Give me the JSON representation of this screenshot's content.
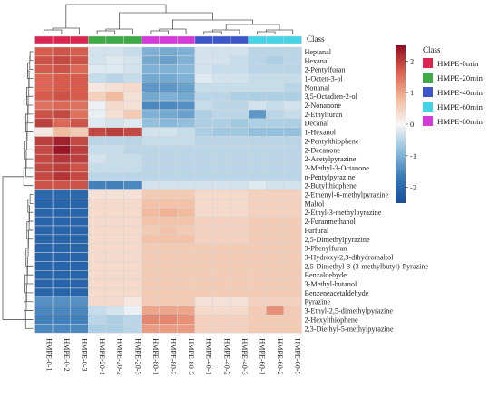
{
  "chart_data": {
    "type": "heatmap",
    "title": "",
    "class_row_label": "Class",
    "legend_title": "Class",
    "classes": [
      {
        "name": "HMPE-0min",
        "color": "#d9254f"
      },
      {
        "name": "HMPE-20min",
        "color": "#3daa47"
      },
      {
        "name": "HMPE-40min",
        "color": "#3c55c9"
      },
      {
        "name": "HMPE-60min",
        "color": "#45d3e6"
      },
      {
        "name": "HMPE-80min",
        "color": "#d43ad8"
      }
    ],
    "samples": [
      {
        "name": "HMPE-0-1",
        "class": "HMPE-0min"
      },
      {
        "name": "HMPE-0-2",
        "class": "HMPE-0min"
      },
      {
        "name": "HMPE-0-3",
        "class": "HMPE-0min"
      },
      {
        "name": "HMPE-20-1",
        "class": "HMPE-20min"
      },
      {
        "name": "HMPE-20-2",
        "class": "HMPE-20min"
      },
      {
        "name": "HMPE-20-3",
        "class": "HMPE-20min"
      },
      {
        "name": "HMPE-80-1",
        "class": "HMPE-80min"
      },
      {
        "name": "HMPE-80-2",
        "class": "HMPE-80min"
      },
      {
        "name": "HMPE-80-3",
        "class": "HMPE-80min"
      },
      {
        "name": "HMPE-40-1",
        "class": "HMPE-40min"
      },
      {
        "name": "HMPE-40-2",
        "class": "HMPE-40min"
      },
      {
        "name": "HMPE-40-3",
        "class": "HMPE-40min"
      },
      {
        "name": "HMPE-60-1",
        "class": "HMPE-60min"
      },
      {
        "name": "HMPE-60-2",
        "class": "HMPE-60min"
      },
      {
        "name": "HMPE-60-3",
        "class": "HMPE-60min"
      }
    ],
    "compounds": [
      "Heptanal",
      "Hexanal",
      "2-Pentylfuran",
      "1-Octen-3-ol",
      "Nonanal",
      "3,5-Octadien-2-ol",
      "2-Nonanone",
      "2-Ethylfuran",
      "Decanal",
      "1-Hexanol",
      "2-Pentylthiophene",
      "2-Decanone",
      "2-Acetylpyrazine",
      "2-Methyl-3-Octanone",
      "n-Pentylpyrazine",
      "2-Butylthiophene",
      "2-Ethenyl-6-methylpyrazine",
      "Maltol",
      "2-Ethyl-3-methylpyrazine",
      "2-Furanmethanol",
      "Furfural",
      "2,5-Dimethylpyrazine",
      "3-Phenylfuran",
      "3-Hydroxy-2,3-dihydromaltol",
      "2,5-Dimethyl-3-(3-methylbutyl)-Pyrazine",
      "Benzaldehyde",
      "3-Methyl-butanol",
      "Benzeneacetaldehyde",
      "Pyrazine",
      "3-Ethyl-2,5-dimethylpyrazine",
      "2-Hexylthiophene",
      "2,3-Diethyl-5-methylpyrazine"
    ],
    "values": [
      [
        1.7,
        1.8,
        1.7,
        -0.3,
        -0.3,
        -0.4,
        -1.0,
        -1.1,
        -1.0,
        -0.3,
        -0.3,
        -0.3,
        -0.5,
        -0.5,
        -0.5
      ],
      [
        1.8,
        1.9,
        1.8,
        -0.3,
        -0.2,
        -0.3,
        -1.1,
        -1.2,
        -1.0,
        -0.3,
        -0.3,
        -0.4,
        -0.5,
        -0.6,
        -0.5
      ],
      [
        1.7,
        1.8,
        1.6,
        -0.2,
        -0.2,
        -0.3,
        -1.0,
        -1.0,
        -0.9,
        -0.3,
        -0.4,
        -0.4,
        -0.5,
        -0.5,
        -0.5
      ],
      [
        1.6,
        1.7,
        1.7,
        -0.4,
        -0.5,
        -0.4,
        -1.1,
        -1.1,
        -1.0,
        -0.2,
        -0.3,
        -0.3,
        -0.4,
        -0.4,
        -0.4
      ],
      [
        1.6,
        1.7,
        1.7,
        0.2,
        0.3,
        0.4,
        -1.3,
        -1.3,
        -1.2,
        -0.4,
        -0.4,
        -0.4,
        -0.4,
        -0.4,
        -0.5
      ],
      [
        1.7,
        1.8,
        1.7,
        0.5,
        0.8,
        0.3,
        -1.1,
        -1.0,
        -1.1,
        -0.5,
        -0.5,
        -0.6,
        -0.6,
        -0.6,
        -0.6
      ],
      [
        1.5,
        1.6,
        1.5,
        -0.1,
        0.4,
        0.3,
        -1.5,
        -1.5,
        -1.4,
        -0.4,
        -0.5,
        -0.5,
        -0.3,
        -0.4,
        -0.3
      ],
      [
        1.8,
        1.9,
        1.5,
        -0.1,
        0.3,
        0.6,
        -1.0,
        -1.1,
        -1.2,
        -0.6,
        -0.5,
        -0.5,
        -1.3,
        -0.5,
        -0.4
      ],
      [
        2.0,
        1.6,
        1.8,
        -0.2,
        -0.3,
        -0.2,
        -0.8,
        -0.9,
        -0.8,
        -0.6,
        -0.6,
        -0.7,
        -0.6,
        -0.6,
        -0.6
      ],
      [
        0.2,
        0.8,
        0.6,
        1.9,
        2.0,
        1.9,
        -0.3,
        -0.3,
        -0.4,
        -0.6,
        -0.7,
        -0.7,
        -0.8,
        -0.8,
        -0.8
      ],
      [
        2.0,
        2.3,
        1.9,
        -0.5,
        -0.5,
        -0.5,
        -0.4,
        -0.4,
        -0.4,
        -0.5,
        -0.5,
        -0.5,
        -0.5,
        -0.5,
        -0.5
      ],
      [
        1.9,
        2.4,
        2.0,
        -0.4,
        -0.4,
        -0.5,
        -0.5,
        -0.5,
        -0.5,
        -0.5,
        -0.5,
        -0.5,
        -0.5,
        -0.5,
        -0.5
      ],
      [
        1.9,
        2.1,
        2.0,
        -0.3,
        -0.4,
        -0.4,
        -0.5,
        -0.5,
        -0.5,
        -0.5,
        -0.5,
        -0.5,
        -0.5,
        -0.5,
        -0.5
      ],
      [
        1.9,
        2.0,
        1.8,
        -0.4,
        -0.4,
        -0.4,
        -0.5,
        -0.5,
        -0.5,
        -0.5,
        -0.5,
        -0.5,
        -0.5,
        -0.5,
        -0.5
      ],
      [
        1.9,
        2.1,
        1.9,
        -0.5,
        -0.5,
        -0.5,
        -0.5,
        -0.5,
        -0.5,
        -0.5,
        -0.5,
        -0.5,
        -0.5,
        -0.5,
        -0.5
      ],
      [
        1.8,
        1.8,
        1.8,
        -1.6,
        -1.6,
        -1.5,
        -0.3,
        -0.3,
        -0.3,
        -0.3,
        -0.3,
        -0.3,
        -0.2,
        -0.3,
        -0.3
      ],
      [
        -2.0,
        -2.0,
        -2.0,
        0.3,
        0.3,
        0.3,
        0.6,
        0.6,
        0.6,
        0.4,
        0.4,
        0.4,
        0.5,
        0.5,
        0.5
      ],
      [
        -2.1,
        -2.1,
        -2.1,
        0.4,
        0.4,
        0.4,
        0.7,
        0.7,
        0.7,
        0.4,
        0.4,
        0.4,
        0.5,
        0.5,
        0.5
      ],
      [
        -2.1,
        -2.1,
        -2.1,
        0.4,
        0.4,
        0.4,
        0.8,
        0.9,
        0.8,
        0.4,
        0.4,
        0.4,
        0.5,
        0.5,
        0.5
      ],
      [
        -2.1,
        -2.1,
        -2.1,
        0.4,
        0.4,
        0.4,
        0.7,
        0.7,
        0.7,
        0.5,
        0.5,
        0.5,
        0.6,
        0.6,
        0.6
      ],
      [
        -2.1,
        -2.1,
        -2.1,
        0.4,
        0.4,
        0.4,
        0.6,
        0.7,
        0.6,
        0.5,
        0.5,
        0.5,
        0.6,
        0.6,
        0.6
      ],
      [
        -2.1,
        -2.1,
        -2.1,
        0.4,
        0.4,
        0.4,
        0.7,
        0.7,
        0.7,
        0.5,
        0.5,
        0.5,
        0.6,
        0.6,
        0.6
      ],
      [
        -2.1,
        -2.1,
        -2.1,
        0.4,
        0.4,
        0.4,
        0.6,
        0.6,
        0.6,
        0.6,
        0.6,
        0.6,
        0.6,
        0.6,
        0.6
      ],
      [
        -2.1,
        -2.1,
        -2.1,
        0.4,
        0.4,
        0.4,
        0.6,
        0.6,
        0.6,
        0.6,
        0.6,
        0.6,
        0.6,
        0.6,
        0.6
      ],
      [
        -2.1,
        -2.1,
        -2.1,
        0.4,
        0.4,
        0.4,
        0.6,
        0.6,
        0.6,
        0.6,
        0.6,
        0.6,
        0.6,
        0.6,
        0.6
      ],
      [
        -2.1,
        -2.1,
        -2.1,
        0.4,
        0.4,
        0.4,
        0.6,
        0.6,
        0.6,
        0.6,
        0.6,
        0.6,
        0.6,
        0.6,
        0.6
      ],
      [
        -2.1,
        -2.1,
        -2.1,
        0.4,
        0.4,
        0.4,
        0.6,
        0.6,
        0.6,
        0.6,
        0.6,
        0.6,
        0.6,
        0.6,
        0.6
      ],
      [
        -2.1,
        -2.1,
        -2.1,
        0.4,
        0.4,
        0.4,
        0.6,
        0.6,
        0.6,
        0.6,
        0.6,
        0.6,
        0.6,
        0.6,
        0.6
      ],
      [
        -1.4,
        -1.4,
        -1.4,
        0.4,
        0.4,
        0.2,
        0.6,
        0.6,
        0.6,
        0.3,
        0.3,
        0.3,
        0.5,
        0.5,
        0.5
      ],
      [
        -1.5,
        -1.5,
        -1.5,
        -0.4,
        -0.3,
        -0.1,
        1.0,
        1.0,
        1.0,
        0.4,
        0.4,
        0.4,
        0.6,
        1.2,
        0.6
      ],
      [
        -1.6,
        -1.6,
        -1.6,
        -0.5,
        -0.6,
        -0.5,
        1.3,
        1.3,
        1.2,
        0.5,
        0.5,
        0.5,
        0.6,
        0.6,
        0.6
      ],
      [
        -1.5,
        -1.5,
        -1.5,
        -0.6,
        -0.6,
        -0.5,
        1.1,
        1.1,
        1.1,
        0.5,
        0.5,
        0.5,
        0.6,
        0.6,
        0.6
      ]
    ],
    "color_scale": {
      "min": -2.5,
      "max": 2.5,
      "ticks": [
        2,
        1,
        0,
        -1,
        -2
      ],
      "stops": [
        "#174f9b",
        "#3a7ab8",
        "#8fbfdc",
        "#f7f7f7",
        "#f2b89a",
        "#d9604f",
        "#8f0d22"
      ]
    }
  }
}
